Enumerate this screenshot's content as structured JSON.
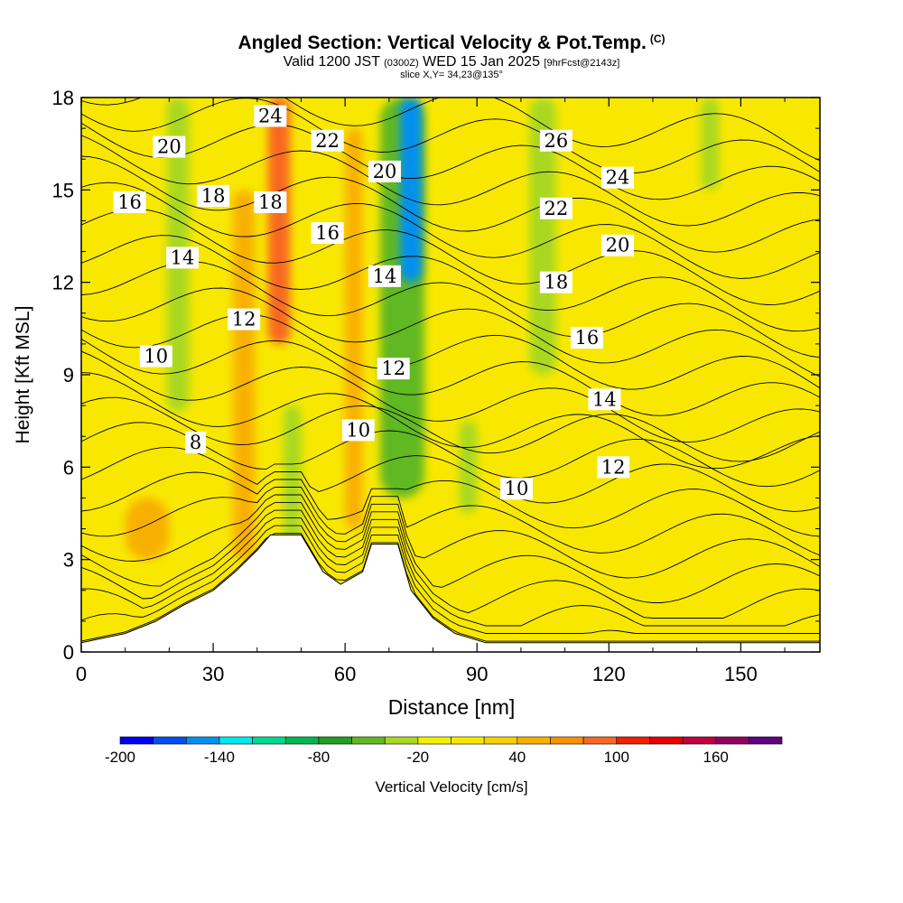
{
  "title": "Angled Section: Vertical Velocity & Pot.Temp.",
  "title_mark": "(C)",
  "subtitle_a": "Valid 1200 JST",
  "subtitle_z": "(0300Z)",
  "subtitle_b": "WED 15 Jan 2025",
  "subtitle_fcst": "[9hrFcst@2143z]",
  "slice": "slice X,Y= 34,23@135°",
  "chart_data": {
    "type": "heatmap",
    "xlabel": "Distance [nm]",
    "ylabel": "Height [Kft MSL]",
    "xlim": [
      0,
      168
    ],
    "ylim": [
      0,
      18
    ],
    "x_ticks": [
      0,
      30,
      60,
      90,
      120,
      150
    ],
    "y_ticks": [
      0,
      3,
      6,
      9,
      12,
      15,
      18
    ],
    "colorbar": {
      "label": "Vertical Velocity [cm/s]",
      "ticks": [
        -200,
        -140,
        -80,
        -20,
        40,
        100,
        160
      ],
      "levels": [
        -200,
        -180,
        -160,
        -140,
        -120,
        -100,
        -80,
        -60,
        -40,
        -20,
        0,
        20,
        40,
        60,
        80,
        100,
        120,
        140,
        160,
        180
      ],
      "colors": [
        "#0000f0",
        "#0050f0",
        "#0090f0",
        "#00e8f0",
        "#00d890",
        "#00b850",
        "#20a020",
        "#60b820",
        "#a8d820",
        "#f0f000",
        "#f8e800",
        "#f8d000",
        "#f8b000",
        "#f89000",
        "#f86820",
        "#f02000",
        "#e80000",
        "#c00040",
        "#900060",
        "#600080"
      ]
    },
    "velocity_features": [
      {
        "x": 22,
        "ybottom": 7.8,
        "ytop": 18,
        "value": -40,
        "width": 5
      },
      {
        "x": 45,
        "ybottom": 10,
        "ytop": 18,
        "value": 90,
        "width": 5
      },
      {
        "x": 48,
        "ybottom": 2,
        "ytop": 8,
        "value": -30,
        "width": 4
      },
      {
        "x": 73,
        "ybottom": 5,
        "ytop": 18,
        "value": -60,
        "width": 10
      },
      {
        "x": 75,
        "ybottom": 12,
        "ytop": 18,
        "value": -150,
        "width": 5
      },
      {
        "x": 88,
        "ybottom": 4.5,
        "ytop": 7.5,
        "value": -30,
        "width": 4
      },
      {
        "x": 105,
        "ybottom": 9,
        "ytop": 18,
        "value": -30,
        "width": 6
      },
      {
        "x": 143,
        "ybottom": 15,
        "ytop": 18,
        "value": -30,
        "width": 4
      },
      {
        "x": 15,
        "ybottom": 3,
        "ytop": 5,
        "value": 45,
        "width": 10
      },
      {
        "x": 37,
        "ybottom": 3,
        "ytop": 15,
        "value": 40,
        "width": 5
      },
      {
        "x": 62,
        "ybottom": 4,
        "ytop": 17,
        "value": 45,
        "width": 4
      }
    ],
    "theta_contours": {
      "levels": [
        6,
        7,
        8,
        9,
        10,
        11,
        12,
        13,
        14,
        15,
        16,
        17,
        18,
        19,
        20,
        21,
        22,
        23,
        24,
        25,
        26,
        27,
        28,
        29,
        30
      ],
      "labels": [
        {
          "text": "24",
          "x": 43,
          "y": 17.4
        },
        {
          "text": "20",
          "x": 20,
          "y": 16.4
        },
        {
          "text": "22",
          "x": 56,
          "y": 16.6
        },
        {
          "text": "20",
          "x": 69,
          "y": 15.6
        },
        {
          "text": "26",
          "x": 108,
          "y": 16.6
        },
        {
          "text": "24",
          "x": 122,
          "y": 15.4
        },
        {
          "text": "16",
          "x": 11,
          "y": 14.6
        },
        {
          "text": "18",
          "x": 30,
          "y": 14.8
        },
        {
          "text": "18",
          "x": 43,
          "y": 14.6
        },
        {
          "text": "16",
          "x": 56,
          "y": 13.6
        },
        {
          "text": "22",
          "x": 108,
          "y": 14.4
        },
        {
          "text": "20",
          "x": 122,
          "y": 13.2
        },
        {
          "text": "14",
          "x": 23,
          "y": 12.8
        },
        {
          "text": "14",
          "x": 69,
          "y": 12.2
        },
        {
          "text": "18",
          "x": 108,
          "y": 12
        },
        {
          "text": "12",
          "x": 37,
          "y": 10.8
        },
        {
          "text": "16",
          "x": 115,
          "y": 10.2
        },
        {
          "text": "10",
          "x": 17,
          "y": 9.6
        },
        {
          "text": "12",
          "x": 71,
          "y": 9.2
        },
        {
          "text": "14",
          "x": 119,
          "y": 8.2
        },
        {
          "text": "10",
          "x": 63,
          "y": 7.2
        },
        {
          "text": "8",
          "x": 26,
          "y": 6.8
        },
        {
          "text": "12",
          "x": 121,
          "y": 6
        },
        {
          "text": "10",
          "x": 99,
          "y": 5.3
        }
      ]
    },
    "terrain": [
      [
        0,
        0.3
      ],
      [
        10,
        0.6
      ],
      [
        17,
        1.0
      ],
      [
        23,
        1.5
      ],
      [
        30,
        2.0
      ],
      [
        35,
        2.6
      ],
      [
        40,
        3.3
      ],
      [
        43,
        3.8
      ],
      [
        50,
        3.8
      ],
      [
        55,
        2.6
      ],
      [
        59,
        2.2
      ],
      [
        64,
        2.6
      ],
      [
        66,
        3.5
      ],
      [
        72,
        3.5
      ],
      [
        75,
        2.0
      ],
      [
        80,
        1.1
      ],
      [
        85,
        0.6
      ],
      [
        92,
        0.3
      ],
      [
        168,
        0.3
      ]
    ]
  }
}
